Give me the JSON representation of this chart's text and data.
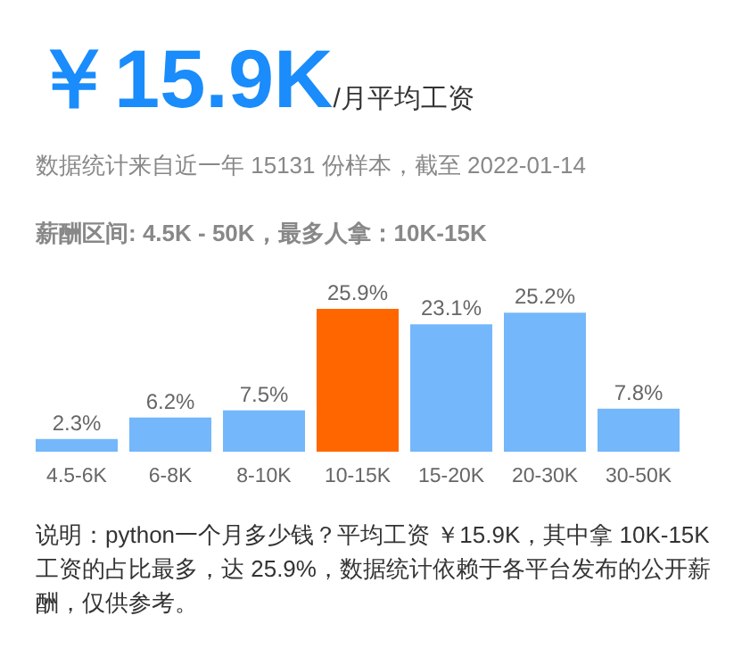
{
  "chart_data": {
    "type": "bar",
    "title": "￥15.9K",
    "subtitle": "/月平均工资",
    "annotations": [
      "数据统计来自近一年 15131 份样本，截至 2022-01-14",
      "薪酬区间: 4.5K - 50K，最多人拿：10K-15K",
      "说明：python一个月多少钱？平均工资 ￥15.9K，其中拿 10K-15K 工资的占比最多，达 25.9%，数据统计依赖于各平台发布的公开薪酬，仅供参考。"
    ],
    "categories": [
      "4.5-6K",
      "6-8K",
      "8-10K",
      "10-15K",
      "15-20K",
      "20-30K",
      "30-50K"
    ],
    "values": [
      2.3,
      6.2,
      7.5,
      25.9,
      23.1,
      25.2,
      7.8
    ],
    "colors": [
      "#74b7fb",
      "#74b7fb",
      "#74b7fb",
      "#ff6600",
      "#74b7fb",
      "#74b7fb",
      "#74b7fb"
    ],
    "value_labels": [
      "2.3%",
      "6.2%",
      "7.5%",
      "25.9%",
      "23.1%",
      "25.2%",
      "7.8%"
    ]
  }
}
